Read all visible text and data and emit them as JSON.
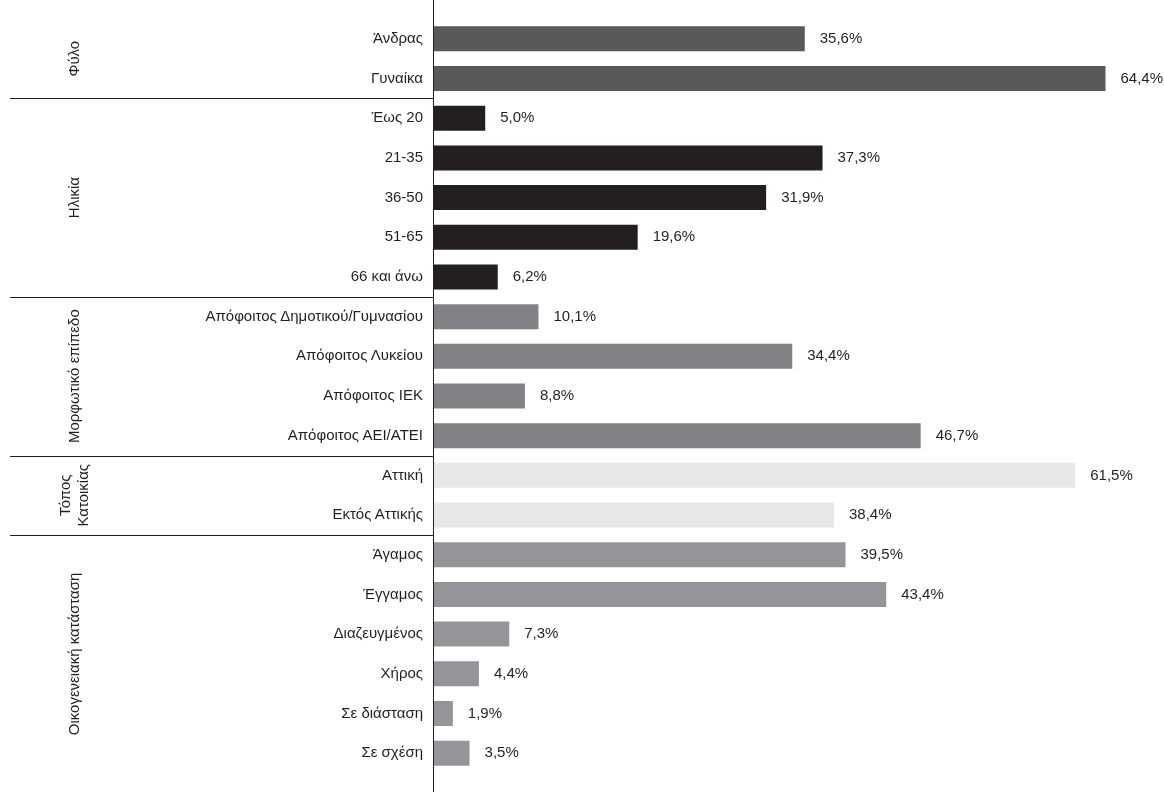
{
  "chart_data": {
    "type": "bar",
    "orientation": "horizontal",
    "categories": [
      "Άνδρας",
      "Γυναίκα",
      "Έως 20",
      "21-35",
      "36-50",
      "51-65",
      "66 και άνω",
      "Απόφοιτος Δημοτικού/Γυμνασίου",
      "Απόφοιτος Λυκείου",
      "Απόφοιτος ΙΕΚ",
      "Απόφοιτος ΑΕΙ/ΑΤΕΙ",
      "Αττική",
      "Εκτός Αττικής",
      "Άγαμος",
      "Έγγαμος",
      "Διαζευγμένος",
      "Χήρος",
      "Σε διάσταση",
      "Σε σχέση"
    ],
    "values": [
      35.6,
      64.4,
      5.0,
      37.3,
      31.9,
      19.6,
      6.2,
      10.1,
      34.4,
      8.8,
      46.7,
      61.5,
      38.4,
      39.5,
      43.4,
      7.3,
      4.4,
      1.9,
      3.5
    ],
    "value_labels": [
      "35,6%",
      "64,4%",
      "5,0%",
      "37,3%",
      "31,9%",
      "19,6%",
      "6,2%",
      "10,1%",
      "34,4%",
      "8,8%",
      "46,7%",
      "61,5%",
      "38,4%",
      "39,5%",
      "43,4%",
      "7,3%",
      "4,4%",
      "1,9%",
      "3,5%"
    ],
    "colors": [
      "#58595b",
      "#58595b",
      "#231f20",
      "#231f20",
      "#231f20",
      "#231f20",
      "#231f20",
      "#808285",
      "#808285",
      "#808285",
      "#808285",
      "#e6e7e8",
      "#e6e7e8",
      "#939598",
      "#939598",
      "#939598",
      "#939598",
      "#939598",
      "#939598"
    ],
    "annotations": [
      "Φύλο",
      "Ηλικία",
      "Μορφωτικό επίπεδο",
      "Τόπος Κατοικίας",
      "Οικογενειακή κατάσταση"
    ]
  }
}
